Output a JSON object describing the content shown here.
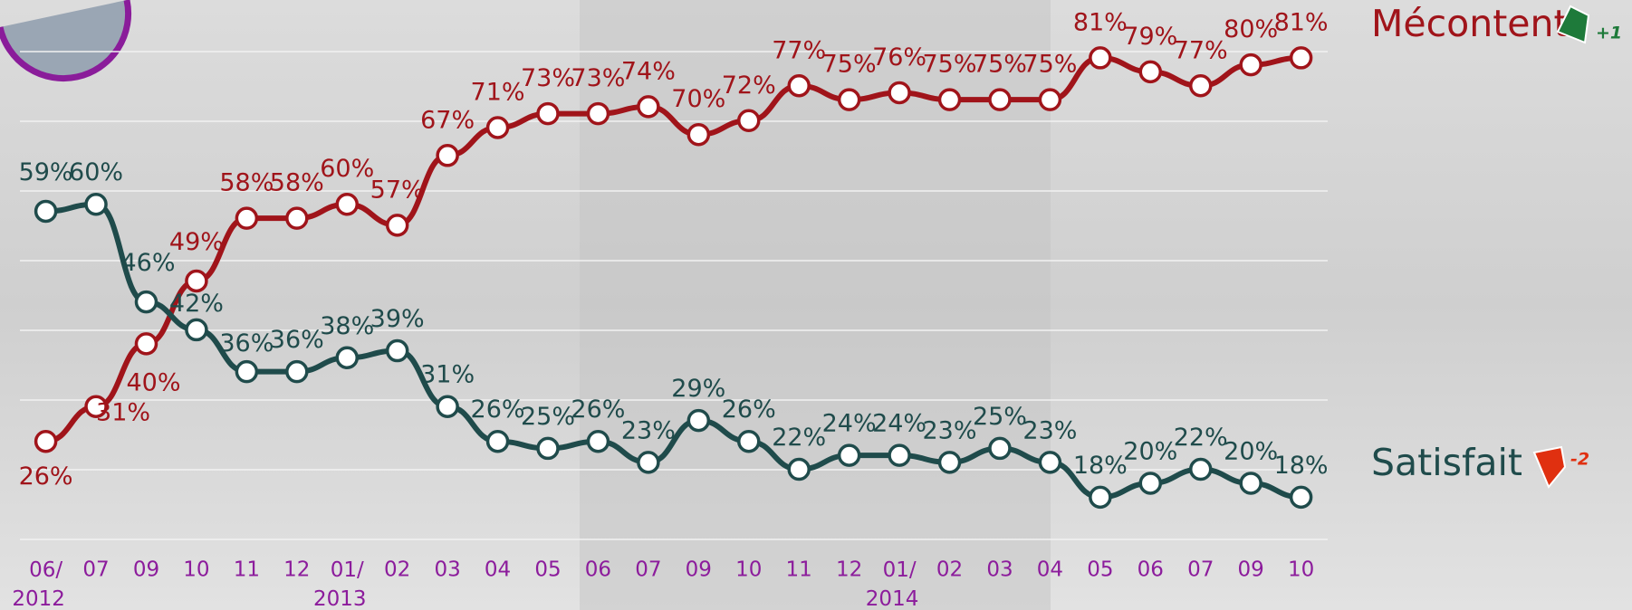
{
  "chart_data": {
    "type": "line",
    "categories": [
      "06/ 2012",
      "07",
      "09",
      "10",
      "11",
      "12",
      "01/ 2013",
      "02",
      "03",
      "04",
      "05",
      "06",
      "07",
      "09",
      "10",
      "11",
      "12",
      "01/ 2014",
      "02",
      "03",
      "04",
      "05",
      "06",
      "07",
      "09",
      "10"
    ],
    "ylim": [
      10,
      88
    ],
    "series": [
      {
        "name": "Mécontent",
        "change": "+1",
        "color": "#a0141a",
        "values": [
          26,
          31,
          40,
          49,
          58,
          58,
          60,
          57,
          67,
          71,
          73,
          73,
          74,
          70,
          72,
          77,
          75,
          76,
          75,
          75,
          75,
          81,
          79,
          77,
          80,
          81
        ],
        "value_labels": [
          "26%",
          "31%",
          "40%",
          "49%",
          "58%",
          "58%",
          "60%",
          "57%",
          "67%",
          "71%",
          "73%",
          "73%",
          "74%",
          "70%",
          "72%",
          "77%",
          "75%",
          "76%",
          "75%",
          "75%",
          "75%",
          "81%",
          "79%",
          "77%",
          "80%",
          "81%"
        ]
      },
      {
        "name": "Satisfait",
        "change": "-2",
        "color": "#1f4b4b",
        "values": [
          59,
          60,
          46,
          42,
          36,
          36,
          38,
          39,
          31,
          26,
          25,
          26,
          23,
          29,
          26,
          22,
          24,
          24,
          23,
          25,
          23,
          18,
          20,
          22,
          20,
          18
        ],
        "value_labels": [
          "59%",
          "60%",
          "46%",
          "42%",
          "36%",
          "36%",
          "38%",
          "39%",
          "31%",
          "26%",
          "25%",
          "26%",
          "23%",
          "29%",
          "26%",
          "22%",
          "24%",
          "24%",
          "23%",
          "25%",
          "23%",
          "18%",
          "20%",
          "22%",
          "20%",
          "18%"
        ]
      }
    ]
  }
}
